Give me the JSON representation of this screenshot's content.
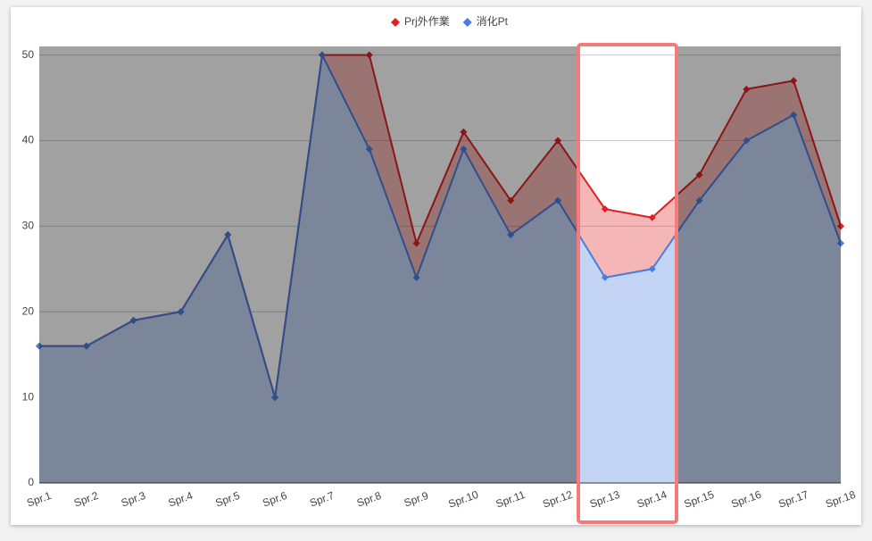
{
  "chart_data": {
    "type": "area",
    "categories": [
      "Spr.1",
      "Spr.2",
      "Spr.3",
      "Spr.4",
      "Spr.5",
      "Spr.6",
      "Spr.7",
      "Spr.8",
      "Spr.9",
      "Spr.10",
      "Spr.11",
      "Spr.12",
      "Spr.13",
      "Spr.14",
      "Spr.15",
      "Spr.16",
      "Spr.17",
      "Spr.18"
    ],
    "series": [
      {
        "name": "Prj外作業",
        "color": "#dd2222",
        "values": [
          16,
          16,
          19,
          20,
          29,
          10,
          50,
          50,
          28,
          41,
          33,
          40,
          32,
          31,
          36,
          46,
          47,
          30
        ]
      },
      {
        "name": "消化Pt",
        "color": "#4a7de0",
        "values": [
          16,
          16,
          19,
          20,
          29,
          10,
          50,
          39,
          24,
          39,
          29,
          33,
          24,
          25,
          33,
          40,
          43,
          28
        ]
      }
    ],
    "ylim": [
      0,
      51
    ],
    "yticks": [
      0,
      10,
      20,
      30,
      40,
      50
    ],
    "grid": true,
    "legend": "top"
  }
}
